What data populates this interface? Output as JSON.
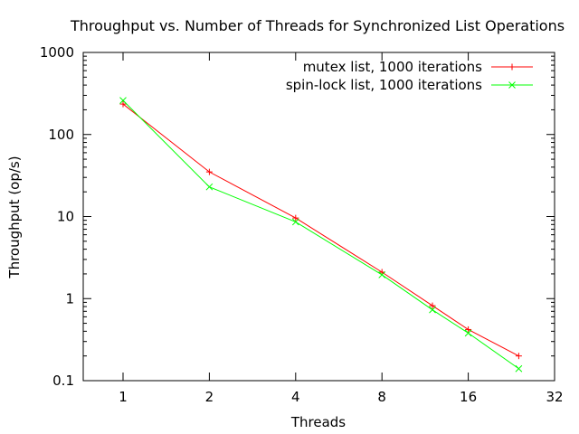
{
  "chart_data": {
    "type": "line",
    "title": "Throughput vs. Number of Threads for Synchronized List Operations",
    "xlabel": "Threads",
    "ylabel": "Throughput (op/s)",
    "x_scale": "log2",
    "y_scale": "log10",
    "xlim": [
      0.6,
      32
    ],
    "ylim": [
      0.1,
      1000
    ],
    "x_ticks": [
      1,
      2,
      4,
      8,
      16,
      32
    ],
    "x_tick_labels": [
      "1",
      "2",
      "4",
      "8",
      "16",
      "32"
    ],
    "y_ticks": [
      0.1,
      1,
      10,
      100,
      1000
    ],
    "y_tick_labels": [
      "0.1",
      "1",
      "10",
      "100",
      "1000"
    ],
    "grid": false,
    "legend_position": "top-right",
    "series": [
      {
        "name": "mutex list, 1000 iterations",
        "color": "#ff0000",
        "marker": "plus",
        "x": [
          1,
          2,
          4,
          8,
          12,
          16,
          24
        ],
        "y": [
          235,
          35,
          9.6,
          2.1,
          0.82,
          0.42,
          0.2
        ]
      },
      {
        "name": "spin-lock list, 1000 iterations",
        "color": "#00ff00",
        "marker": "cross",
        "x": [
          1,
          2,
          4,
          8,
          12,
          16,
          24
        ],
        "y": [
          260,
          23,
          8.6,
          1.95,
          0.73,
          0.38,
          0.14
        ]
      }
    ]
  }
}
